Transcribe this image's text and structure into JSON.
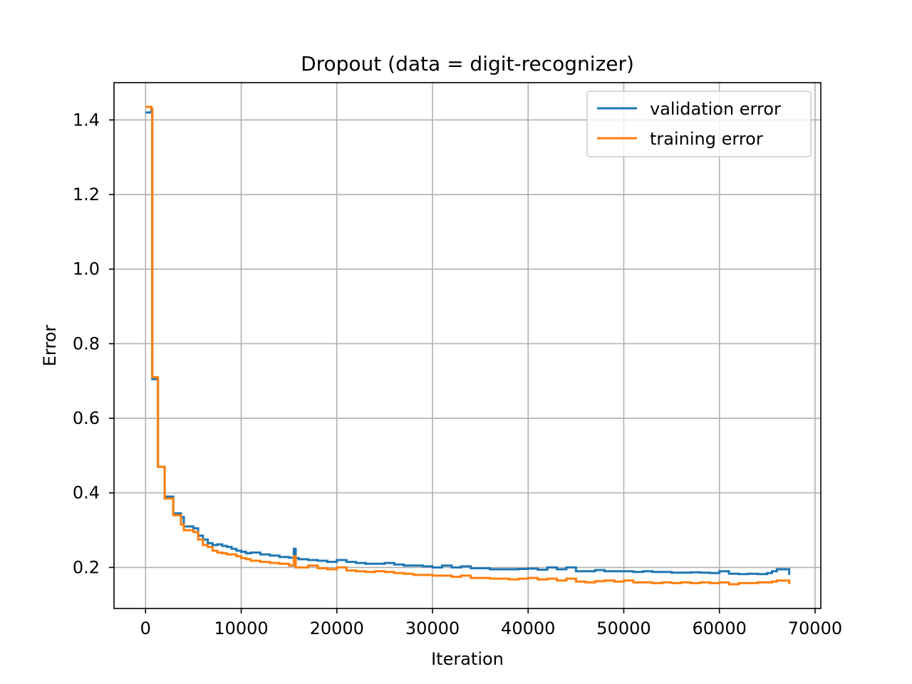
{
  "chart_data": {
    "type": "line",
    "title": "Dropout (data = digit-recognizer)",
    "xlabel": "Iteration",
    "ylabel": "Error",
    "xlim": [
      -3300,
      70600
    ],
    "ylim": [
      0.09,
      1.5
    ],
    "xticks": [
      0,
      10000,
      20000,
      30000,
      40000,
      50000,
      60000,
      70000
    ],
    "xtick_labels": [
      "0",
      "10000",
      "20000",
      "30000",
      "40000",
      "50000",
      "60000",
      "70000"
    ],
    "yticks": [
      0.2,
      0.4,
      0.6,
      0.8,
      1.0,
      1.2,
      1.4
    ],
    "ytick_labels": [
      "0.2",
      "0.4",
      "0.6",
      "0.8",
      "1.0",
      "1.2",
      "1.4"
    ],
    "grid": true,
    "legend_position": "top-right",
    "series": [
      {
        "name": "validation error",
        "color": "#1f77b4",
        "x": [
          0,
          500,
          600,
          700,
          1200,
          1300,
          2000,
          2500,
          2900,
          3300,
          3700,
          4000,
          4500,
          5000,
          5500,
          6000,
          6500,
          7000,
          7500,
          8000,
          8500,
          9000,
          9500,
          10000,
          10500,
          11000,
          12000,
          13000,
          14000,
          15000,
          15500,
          15700,
          16000,
          17000,
          18000,
          19000,
          20000,
          21000,
          22000,
          23000,
          24000,
          25000,
          26000,
          27000,
          28000,
          29000,
          30000,
          31000,
          32000,
          33000,
          34000,
          35000,
          36000,
          37000,
          38000,
          39000,
          40000,
          41000,
          42000,
          43000,
          44000,
          45000,
          46000,
          47000,
          48000,
          49000,
          50000,
          51000,
          52000,
          53000,
          54000,
          55000,
          56000,
          57000,
          58000,
          59000,
          60000,
          61000,
          62000,
          63000,
          64000,
          65000,
          65500,
          66000,
          67300
        ],
        "values": [
          1.42,
          1.42,
          1.43,
          0.705,
          0.705,
          0.47,
          0.39,
          0.39,
          0.345,
          0.345,
          0.335,
          0.31,
          0.31,
          0.305,
          0.285,
          0.275,
          0.265,
          0.26,
          0.262,
          0.258,
          0.255,
          0.25,
          0.245,
          0.242,
          0.238,
          0.24,
          0.235,
          0.232,
          0.228,
          0.226,
          0.25,
          0.225,
          0.222,
          0.22,
          0.218,
          0.215,
          0.22,
          0.215,
          0.212,
          0.21,
          0.21,
          0.212,
          0.208,
          0.205,
          0.205,
          0.203,
          0.2,
          0.205,
          0.2,
          0.203,
          0.198,
          0.198,
          0.195,
          0.195,
          0.195,
          0.196,
          0.197,
          0.194,
          0.2,
          0.195,
          0.2,
          0.19,
          0.19,
          0.193,
          0.19,
          0.19,
          0.19,
          0.188,
          0.19,
          0.188,
          0.188,
          0.186,
          0.186,
          0.187,
          0.186,
          0.185,
          0.19,
          0.183,
          0.182,
          0.183,
          0.182,
          0.185,
          0.19,
          0.195,
          0.18
        ]
      },
      {
        "name": "training error",
        "color": "#ff7f0e",
        "x": [
          0,
          500,
          600,
          700,
          1200,
          1300,
          2000,
          2500,
          2900,
          3300,
          3700,
          4000,
          4500,
          5000,
          5500,
          6000,
          6500,
          7000,
          7500,
          8000,
          8500,
          9000,
          9500,
          10000,
          10500,
          11000,
          12000,
          13000,
          14000,
          15000,
          15500,
          15700,
          16000,
          17000,
          18000,
          19000,
          20000,
          21000,
          22000,
          23000,
          24000,
          25000,
          26000,
          27000,
          28000,
          29000,
          30000,
          31000,
          32000,
          33000,
          34000,
          35000,
          36000,
          37000,
          38000,
          39000,
          40000,
          41000,
          42000,
          43000,
          44000,
          45000,
          46000,
          47000,
          48000,
          49000,
          50000,
          51000,
          52000,
          53000,
          54000,
          55000,
          56000,
          57000,
          58000,
          59000,
          60000,
          61000,
          62000,
          63000,
          64000,
          65000,
          65500,
          66000,
          67300
        ],
        "values": [
          1.435,
          1.435,
          1.43,
          0.71,
          0.71,
          0.47,
          0.385,
          0.385,
          0.34,
          0.34,
          0.315,
          0.3,
          0.3,
          0.295,
          0.275,
          0.26,
          0.255,
          0.245,
          0.24,
          0.238,
          0.235,
          0.235,
          0.23,
          0.225,
          0.222,
          0.218,
          0.215,
          0.212,
          0.21,
          0.205,
          0.23,
          0.2,
          0.2,
          0.205,
          0.198,
          0.195,
          0.2,
          0.192,
          0.19,
          0.188,
          0.19,
          0.188,
          0.185,
          0.183,
          0.18,
          0.18,
          0.178,
          0.178,
          0.175,
          0.178,
          0.172,
          0.172,
          0.17,
          0.17,
          0.168,
          0.17,
          0.172,
          0.168,
          0.17,
          0.165,
          0.17,
          0.162,
          0.16,
          0.163,
          0.165,
          0.162,
          0.165,
          0.16,
          0.16,
          0.158,
          0.16,
          0.158,
          0.16,
          0.158,
          0.16,
          0.158,
          0.16,
          0.155,
          0.158,
          0.158,
          0.16,
          0.16,
          0.162,
          0.165,
          0.155
        ]
      }
    ]
  }
}
